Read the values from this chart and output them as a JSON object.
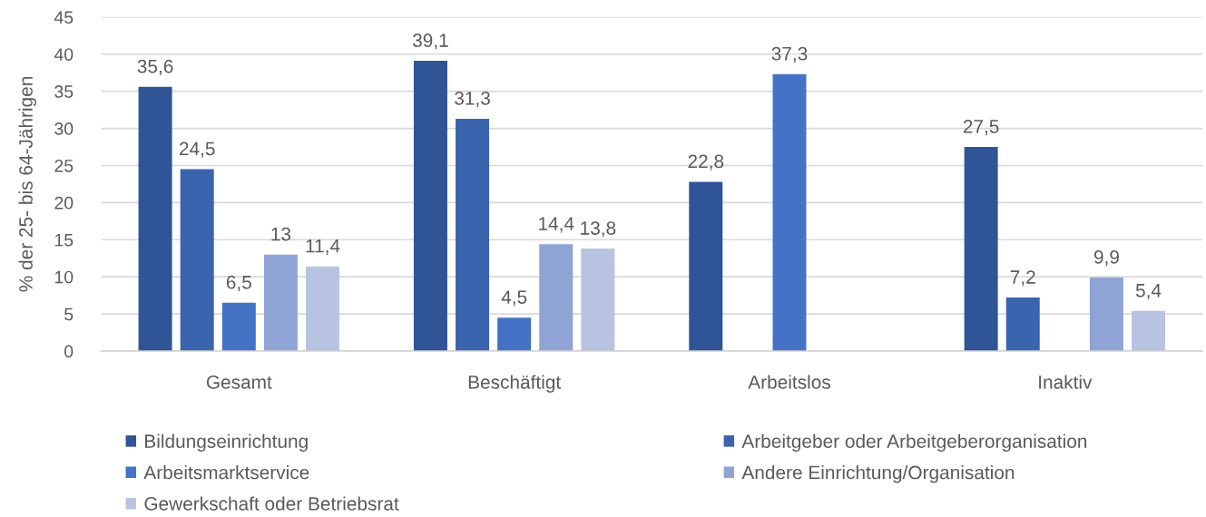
{
  "chart_data": {
    "type": "bar",
    "ylabel": "% der 25- bis 64-Jährigen",
    "categories": [
      "Gesamt",
      "Beschäftigt",
      "Arbeitslos",
      "Inaktiv"
    ],
    "series": [
      {
        "name": "Bildungseinrichtung",
        "color": "#2f5597",
        "values": [
          35.6,
          39.1,
          22.8,
          27.5
        ],
        "value_labels": [
          "35,6",
          "39,1",
          "22,8",
          "27,5"
        ]
      },
      {
        "name": "Arbeitgeber oder Arbeitgeberorganisation",
        "color": "#3a64ad",
        "values": [
          24.5,
          31.3,
          null,
          7.2
        ],
        "value_labels": [
          "24,5",
          "31,3",
          null,
          "7,2"
        ]
      },
      {
        "name": "Arbeitsmarktservice",
        "color": "#4472c4",
        "values": [
          6.5,
          4.5,
          37.3,
          null
        ],
        "value_labels": [
          "6,5",
          "4,5",
          "37,3",
          null
        ]
      },
      {
        "name": "Andere Einrichtung/Organisation",
        "color": "#8fa4d4",
        "values": [
          13,
          14.4,
          null,
          9.9
        ],
        "value_labels": [
          "13",
          "14,4",
          null,
          "9,9"
        ]
      },
      {
        "name": "Gewerkschaft oder Betriebsrat",
        "color": "#b8c3e2",
        "values": [
          11.4,
          13.8,
          null,
          5.4
        ],
        "value_labels": [
          "11,4",
          "13,8",
          null,
          "5,4"
        ]
      }
    ],
    "ylim": [
      0,
      45
    ],
    "yticks": [
      0,
      5,
      10,
      15,
      20,
      25,
      30,
      35,
      40,
      45
    ],
    "grid": "y",
    "legend": "bottom"
  }
}
